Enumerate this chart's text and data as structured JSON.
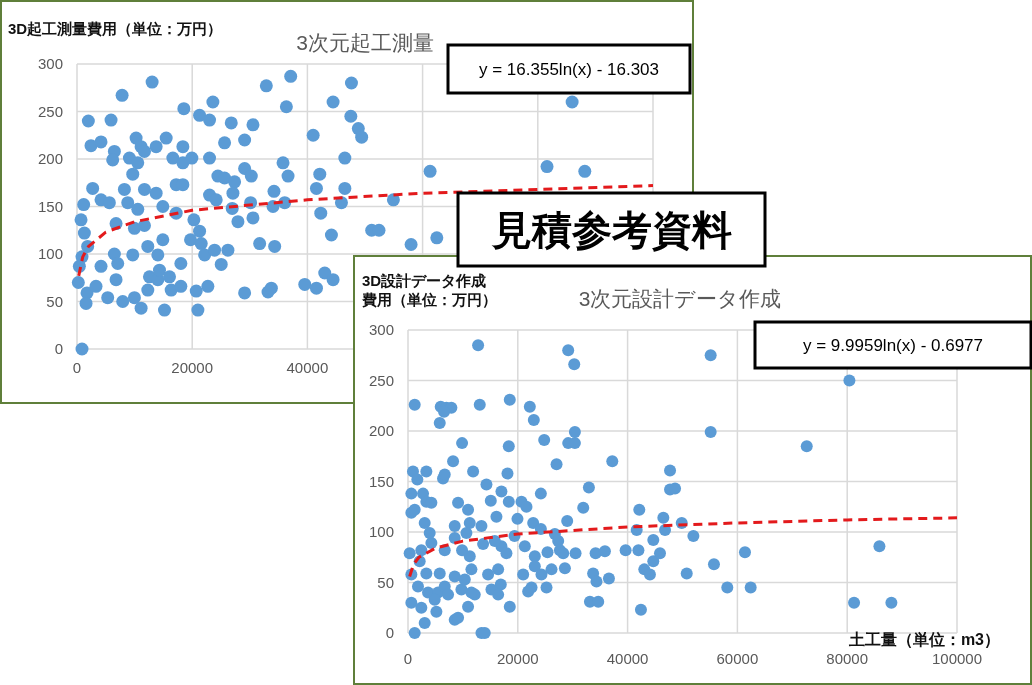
{
  "chart_data": [
    {
      "type": "scatter",
      "title": "3次元起工測量",
      "ylabel": "3D起工測量費用（単位：万円）",
      "xlim": [
        0,
        100000
      ],
      "ylim": [
        0,
        300
      ],
      "xticks": [
        0,
        20000,
        40000,
        {
          "value": 60000,
          "label": null
        },
        {
          "value": 80000,
          "label": null
        },
        {
          "value": 100000,
          "label": null
        }
      ],
      "yticks": [
        0,
        50,
        100,
        150,
        200,
        250,
        300
      ],
      "grid": true,
      "marker": "circle",
      "annotations": [
        "y = 16.355ln(x) - 16.303",
        "見積参考資料"
      ],
      "series": [
        {
          "color": "#5b9bd5",
          "x": [
            870,
            13040,
            7830,
            1970,
            5910,
            2430,
            4170,
            6490,
            6200,
            2720,
            1160,
            700,
            1280,
            1850,
            870,
            410,
            230,
            1740,
            1570,
            3300,
            4170,
            5330,
            4170,
            5620,
            6780,
            6490,
            7070,
            6780,
            7940,
            9680,
            9100,
            10260,
            11130,
            11710,
            10550,
            9680,
            8230,
            8810,
            10550,
            9970,
            11710,
            12290,
            12580,
            14030,
            12290,
            9970,
            11130,
            11710,
            13740,
            13740,
            15480,
            14900,
            14900,
            14030,
            14320,
            16060,
            16350,
            15190,
            16640,
            17220,
            18380,
            18380,
            18380,
            18550,
            17220,
            18030,
            18030,
            19710,
            19940,
            20290,
            21280,
            20700,
            20990,
            21280,
            23010,
            23590,
            23010,
            23010,
            21570,
            22160,
            23880,
            22720,
            24170,
            24460,
            25620,
            25620,
            26200,
            25040,
            26780,
            27360,
            27070,
            27940,
            26950,
            29100,
            29100,
            30260,
            30550,
            30140,
            30550,
            29100,
            31710,
            32870,
            33160,
            33740,
            34200,
            34030,
            34320,
            36350,
            37100,
            35770,
            36640,
            36060,
            41000,
            39540,
            41570,
            41570,
            42150,
            42320,
            44170,
            43010,
            44460,
            44460,
            45910,
            46500,
            46500,
            47540,
            47650,
            48840,
            49420,
            54930,
            61300,
            51160,
            52430,
            58000,
            62470,
            85960,
            81600,
            88160
          ],
          "values": [
            0,
            281,
            267,
            240,
            241,
            214,
            218,
            208,
            199,
            169,
            152,
            136,
            122,
            108,
            97,
            87,
            70,
            59,
            48,
            66,
            87,
            54,
            157,
            154,
            132,
            100,
            90,
            73,
            50,
            99,
            201,
            222,
            213,
            208,
            196,
            184,
            168,
            154,
            147,
            127,
            130,
            108,
            76,
            73,
            62,
            54,
            43,
            168,
            164,
            213,
            222,
            150,
            115,
            99,
            83,
            76,
            62,
            41,
            201,
            173,
            173,
            213,
            196,
            253,
            143,
            90,
            66,
            115,
            201,
            136,
            124,
            61,
            41,
            246,
            241,
            260,
            201,
            162,
            111,
            99,
            104,
            66,
            157,
            182,
            180,
            217,
            104,
            89,
            238,
            176,
            164,
            134,
            148,
            190,
            220,
            182,
            236,
            154,
            138,
            59,
            111,
            277,
            60,
            64,
            166,
            150,
            108,
            255,
            287,
            196,
            182,
            154,
            225,
            68,
            64,
            169,
            184,
            143,
            120,
            80,
            73,
            260,
            154,
            169,
            201,
            245,
            280,
            232,
            223,
            157,
            187,
            125,
            125,
            110,
            117,
            260,
            192,
            187
          ]
        },
        {
          "type": "line",
          "marker": "none",
          "color": "#e31a1c",
          "line_style": "dashed",
          "x": [
            300,
            1000,
            2000,
            5000,
            10000,
            20000,
            40000,
            60000,
            80000,
            100000
          ],
          "values": [
            77,
            97,
            108,
            123,
            134,
            146,
            157,
            164,
            168,
            172
          ]
        }
      ]
    },
    {
      "type": "scatter",
      "title": "3次元設計データ作成",
      "ylabel": "3D設計データ作成費用（単位：万円）",
      "xlabel": "土工量（単位：m3）",
      "xlim": [
        0,
        100000
      ],
      "ylim": [
        0,
        300
      ],
      "xticks": [
        0,
        20000,
        40000,
        60000,
        80000,
        100000
      ],
      "yticks": [
        0,
        50,
        100,
        150,
        200,
        250,
        300
      ],
      "grid": true,
      "marker": "circle",
      "annotations": [
        "y  = 9.9959ln(x) - 0.6977"
      ],
      "series": [
        {
          "color": "#5b9bd5",
          "x": [
            12770,
            29180,
            30280,
            1220,
            13070,
            5960,
            6990,
            7900,
            5780,
            6570,
            18540,
            22190,
            22920,
            24810,
            30400,
            29180,
            30400,
            9850,
            18360,
            8210,
            6380,
            6690,
            910,
            1700,
            3340,
            11860,
            18120,
            27060,
            37210,
            610,
            2740,
            3340,
            4260,
            3040,
            610,
            1220,
            10940,
            11250,
            9120,
            14290,
            15080,
            17020,
            18360,
            16110,
            20670,
            21580,
            19940,
            24200,
            32950,
            31920,
            29000,
            22800,
            24200,
            26750,
            27360,
            27670,
            28270,
            30520,
            25410,
            23100,
            21280,
            19400,
            17020,
            17930,
            15810,
            13380,
            13680,
            8510,
            10640,
            8510,
            6690,
            4260,
            2430,
            300,
            2130,
            3950,
            610,
            3340,
            5780,
            8510,
            11550,
            11250,
            9850,
            14590,
            16420,
            16900,
            20980,
            23100,
            24310,
            26140,
            28580,
            34170,
            35870,
            39640,
            41970,
            33720,
            34330,
            36600,
            43040,
            44070,
            42130,
            41660,
            44680,
            44680,
            45900,
            46820,
            46510,
            47730,
            48640,
            47730,
            49860,
            610,
            2430,
            3040,
            1220,
            5170,
            8510,
            9120,
            10940,
            12160,
            13380,
            13980,
            15200,
            16420,
            18540,
            21890,
            22500,
            25230,
            33140,
            34650,
            42430,
            50770,
            51980,
            1820,
            3650,
            5470,
            6690,
            9730,
            10340,
            11550,
            7300,
            4860,
            55130,
            80400,
            55130,
            72630,
            61380,
            55730,
            58160,
            62420,
            85870,
            81250,
            88050
          ],
          "values": [
            285,
            280,
            266,
            226,
            226,
            224,
            223,
            223,
            208,
            219,
            231,
            224,
            211,
            191,
            199,
            188,
            188,
            188,
            185,
            170,
            153,
            157,
            160,
            152,
            160,
            160,
            158,
            167,
            170,
            138,
            138,
            130,
            129,
            109,
            119,
            122,
            122,
            109,
            129,
            147,
            131,
            140,
            130,
            115,
            130,
            125,
            113,
            138,
            144,
            124,
            111,
            109,
            103,
            98,
            91,
            82,
            79,
            79,
            80,
            76,
            86,
            96,
            86,
            79,
            91,
            106,
            88,
            106,
            99,
            94,
            82,
            89,
            82,
            79,
            71,
            99,
            58,
            59,
            59,
            56,
            63,
            76,
            82,
            58,
            63,
            48,
            58,
            66,
            58,
            63,
            64,
            79,
            81,
            82,
            82,
            59,
            51,
            54,
            63,
            58,
            122,
            102,
            92,
            71,
            79,
            102,
            114,
            142,
            143,
            161,
            109,
            30,
            25,
            10,
            0,
            21,
            13,
            15,
            26,
            38,
            0,
            0,
            43,
            38,
            26,
            41,
            45,
            45,
            31,
            31,
            23,
            59,
            96,
            46,
            40,
            40,
            46,
            43,
            53,
            40,
            38,
            33,
            275,
            250,
            199,
            185,
            80,
            68,
            45,
            45,
            86,
            30,
            30
          ]
        },
        {
          "type": "line",
          "marker": "none",
          "color": "#e31a1c",
          "line_style": "dashed",
          "x": [
            300,
            1000,
            2000,
            5000,
            10000,
            20000,
            40000,
            60000,
            80000,
            100000
          ],
          "values": [
            56,
            68,
            75,
            84,
            91,
            98,
            105,
            109,
            112,
            114
          ]
        }
      ]
    }
  ]
}
